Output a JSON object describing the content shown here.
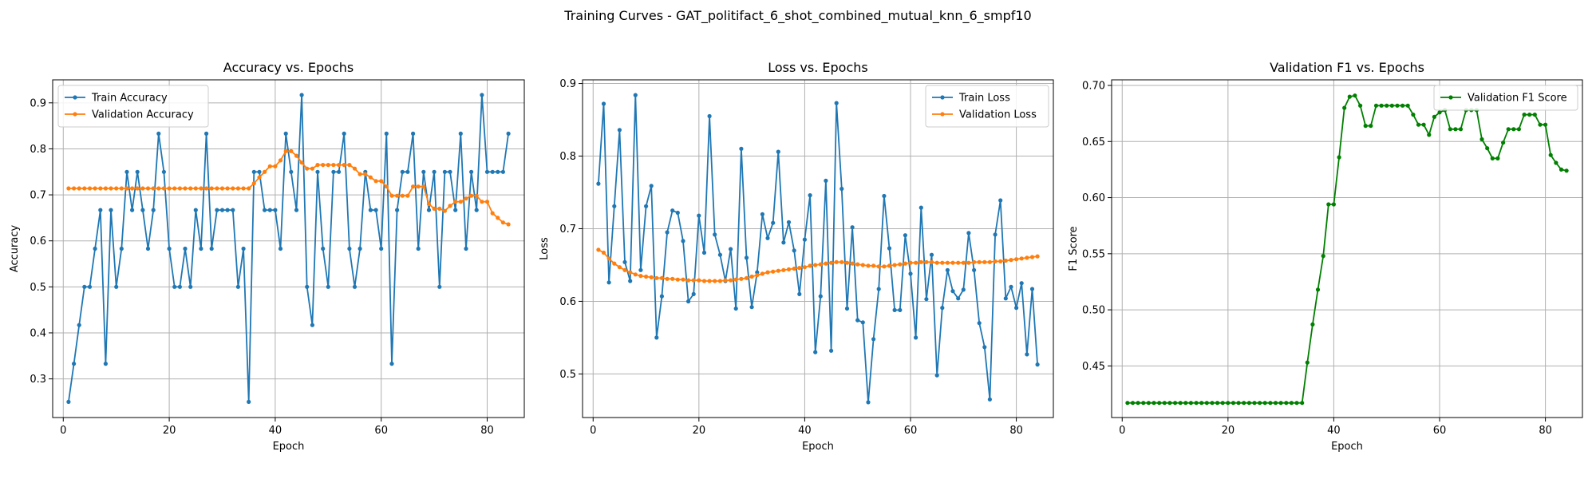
{
  "figure": {
    "suptitle": "Training Curves - GAT_politifact_6_shot_combined_mutual_knn_6_smpf10"
  },
  "colors": {
    "blue": "#1f77b4",
    "orange": "#ff7f0e",
    "green": "#008000"
  },
  "chart_data": [
    {
      "type": "line",
      "title": "Accuracy vs. Epochs",
      "xlabel": "Epoch",
      "ylabel": "Accuracy",
      "xlim": [
        -2,
        87
      ],
      "ylim": [
        0.216,
        0.95
      ],
      "xticks": [
        0,
        20,
        40,
        60,
        80
      ],
      "yticks": [
        0.3,
        0.4,
        0.5,
        0.6,
        0.7,
        0.8,
        0.9
      ],
      "tick_decimals": 1,
      "grid": true,
      "legend": "upper-left",
      "series": [
        {
          "name": "Train Accuracy",
          "color": "#1f77b4",
          "values": [
            0.25,
            0.333,
            0.417,
            0.5,
            0.5,
            0.583,
            0.667,
            0.333,
            0.667,
            0.5,
            0.583,
            0.75,
            0.667,
            0.75,
            0.667,
            0.583,
            0.667,
            0.833,
            0.75,
            0.583,
            0.5,
            0.5,
            0.583,
            0.5,
            0.667,
            0.583,
            0.833,
            0.583,
            0.667,
            0.667,
            0.667,
            0.667,
            0.5,
            0.583,
            0.25,
            0.75,
            0.75,
            0.667,
            0.667,
            0.667,
            0.583,
            0.833,
            0.75,
            0.667,
            0.917,
            0.5,
            0.417,
            0.75,
            0.583,
            0.5,
            0.75,
            0.75,
            0.833,
            0.583,
            0.5,
            0.583,
            0.75,
            0.667,
            0.667,
            0.583,
            0.833,
            0.333,
            0.667,
            0.75,
            0.75,
            0.833,
            0.583,
            0.75,
            0.667,
            0.75,
            0.5,
            0.75,
            0.75,
            0.667,
            0.833,
            0.583,
            0.75,
            0.667,
            0.917,
            0.75,
            0.75,
            0.75,
            0.75,
            0.833
          ]
        },
        {
          "name": "Validation Accuracy",
          "color": "#ff7f0e",
          "values": [
            0.714,
            0.714,
            0.714,
            0.714,
            0.714,
            0.714,
            0.714,
            0.714,
            0.714,
            0.714,
            0.714,
            0.714,
            0.714,
            0.714,
            0.714,
            0.714,
            0.714,
            0.714,
            0.714,
            0.714,
            0.714,
            0.714,
            0.714,
            0.714,
            0.714,
            0.714,
            0.714,
            0.714,
            0.714,
            0.714,
            0.714,
            0.714,
            0.714,
            0.714,
            0.714,
            0.725,
            0.738,
            0.75,
            0.762,
            0.762,
            0.775,
            0.795,
            0.795,
            0.785,
            0.77,
            0.757,
            0.757,
            0.765,
            0.765,
            0.765,
            0.765,
            0.765,
            0.765,
            0.765,
            0.757,
            0.745,
            0.745,
            0.738,
            0.73,
            0.73,
            0.718,
            0.698,
            0.698,
            0.698,
            0.698,
            0.718,
            0.718,
            0.718,
            0.68,
            0.67,
            0.67,
            0.665,
            0.676,
            0.685,
            0.685,
            0.692,
            0.698,
            0.698,
            0.685,
            0.685,
            0.66,
            0.65,
            0.64,
            0.636
          ]
        }
      ]
    },
    {
      "type": "line",
      "title": "Loss vs. Epochs",
      "xlabel": "Epoch",
      "ylabel": "Loss",
      "xlim": [
        -2,
        87
      ],
      "ylim": [
        0.44,
        0.905
      ],
      "xticks": [
        0,
        20,
        40,
        60,
        80
      ],
      "yticks": [
        0.5,
        0.6,
        0.7,
        0.8,
        0.9
      ],
      "tick_decimals": 1,
      "grid": true,
      "legend": "upper-right",
      "series": [
        {
          "name": "Train Loss",
          "color": "#1f77b4",
          "values": [
            0.762,
            0.872,
            0.626,
            0.731,
            0.836,
            0.654,
            0.628,
            0.884,
            0.643,
            0.731,
            0.759,
            0.55,
            0.607,
            0.695,
            0.725,
            0.722,
            0.683,
            0.6,
            0.61,
            0.718,
            0.667,
            0.855,
            0.692,
            0.664,
            0.628,
            0.672,
            0.59,
            0.81,
            0.66,
            0.592,
            0.64,
            0.72,
            0.687,
            0.708,
            0.806,
            0.681,
            0.709,
            0.67,
            0.61,
            0.685,
            0.746,
            0.53,
            0.607,
            0.766,
            0.532,
            0.873,
            0.755,
            0.59,
            0.702,
            0.574,
            0.571,
            0.461,
            0.548,
            0.617,
            0.745,
            0.673,
            0.588,
            0.588,
            0.691,
            0.638,
            0.55,
            0.729,
            0.603,
            0.664,
            0.498,
            0.591,
            0.643,
            0.614,
            0.604,
            0.616,
            0.694,
            0.643,
            0.57,
            0.537,
            0.465,
            0.692,
            0.739,
            0.604,
            0.62,
            0.591,
            0.625,
            0.527,
            0.617,
            0.513
          ]
        },
        {
          "name": "Validation Loss",
          "color": "#ff7f0e",
          "values": [
            0.671,
            0.667,
            0.659,
            0.652,
            0.647,
            0.643,
            0.64,
            0.637,
            0.635,
            0.634,
            0.633,
            0.632,
            0.632,
            0.631,
            0.631,
            0.63,
            0.63,
            0.629,
            0.629,
            0.629,
            0.628,
            0.628,
            0.628,
            0.628,
            0.629,
            0.629,
            0.63,
            0.631,
            0.632,
            0.634,
            0.636,
            0.638,
            0.64,
            0.641,
            0.642,
            0.643,
            0.644,
            0.645,
            0.646,
            0.647,
            0.649,
            0.65,
            0.651,
            0.652,
            0.653,
            0.654,
            0.654,
            0.653,
            0.652,
            0.651,
            0.65,
            0.649,
            0.649,
            0.648,
            0.648,
            0.649,
            0.65,
            0.651,
            0.652,
            0.653,
            0.653,
            0.654,
            0.654,
            0.654,
            0.653,
            0.653,
            0.653,
            0.653,
            0.653,
            0.653,
            0.653,
            0.654,
            0.654,
            0.654,
            0.654,
            0.655,
            0.655,
            0.656,
            0.657,
            0.658,
            0.659,
            0.66,
            0.661,
            0.662
          ]
        }
      ]
    },
    {
      "type": "line",
      "title": "Validation F1 vs. Epochs",
      "xlabel": "Epoch",
      "ylabel": "F1 Score",
      "xlim": [
        -2,
        87
      ],
      "ylim": [
        0.404,
        0.705
      ],
      "xticks": [
        0,
        20,
        40,
        60,
        80
      ],
      "yticks": [
        0.45,
        0.5,
        0.55,
        0.6,
        0.65,
        0.7
      ],
      "tick_decimals": 2,
      "grid": true,
      "legend": "upper-right",
      "series": [
        {
          "name": "Validation F1 Score",
          "color": "#008000",
          "values": [
            0.417,
            0.417,
            0.417,
            0.417,
            0.417,
            0.417,
            0.417,
            0.417,
            0.417,
            0.417,
            0.417,
            0.417,
            0.417,
            0.417,
            0.417,
            0.417,
            0.417,
            0.417,
            0.417,
            0.417,
            0.417,
            0.417,
            0.417,
            0.417,
            0.417,
            0.417,
            0.417,
            0.417,
            0.417,
            0.417,
            0.417,
            0.417,
            0.417,
            0.417,
            0.453,
            0.487,
            0.518,
            0.548,
            0.594,
            0.594,
            0.636,
            0.68,
            0.69,
            0.691,
            0.682,
            0.664,
            0.664,
            0.682,
            0.682,
            0.682,
            0.682,
            0.682,
            0.682,
            0.682,
            0.674,
            0.665,
            0.665,
            0.656,
            0.672,
            0.676,
            0.678,
            0.661,
            0.661,
            0.661,
            0.678,
            0.678,
            0.678,
            0.652,
            0.644,
            0.635,
            0.635,
            0.649,
            0.661,
            0.661,
            0.661,
            0.674,
            0.674,
            0.674,
            0.665,
            0.665,
            0.638,
            0.631,
            0.625,
            0.624
          ]
        }
      ]
    }
  ]
}
